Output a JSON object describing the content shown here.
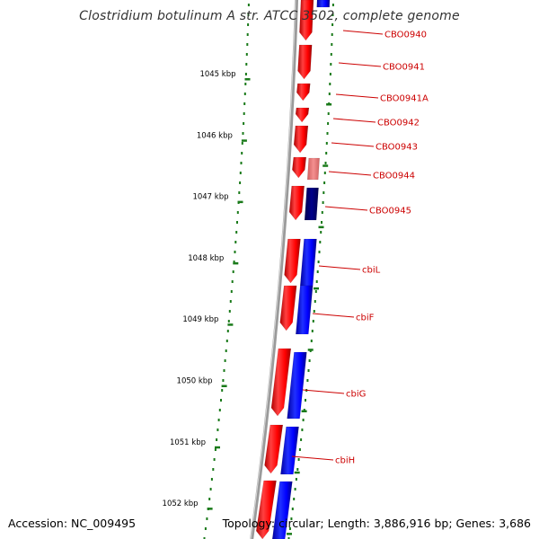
{
  "title": "Clostridium botulinum A str. ATCC 3502, complete genome",
  "accession": "Accession: NC_009495",
  "summary": "Topology: circular; Length: 3,886,916 bp; Genes: 3,686",
  "ticks": [
    {
      "label": "1045 kbp"
    },
    {
      "label": "1046 kbp"
    },
    {
      "label": "1047 kbp"
    },
    {
      "label": "1048 kbp"
    },
    {
      "label": "1049 kbp"
    },
    {
      "label": "1050 kbp"
    },
    {
      "label": "1051 kbp"
    },
    {
      "label": "1052 kbp"
    }
  ],
  "genes": [
    {
      "label": "CBO0940"
    },
    {
      "label": "CBO0941"
    },
    {
      "label": "CBO0941A"
    },
    {
      "label": "CBO0942"
    },
    {
      "label": "CBO0943"
    },
    {
      "label": "CBO0944"
    },
    {
      "label": "CBO0945"
    },
    {
      "label": "cbiL"
    },
    {
      "label": "cbiF"
    },
    {
      "label": "cbiG"
    },
    {
      "label": "cbiH"
    }
  ],
  "colors": {
    "forward": "#ff0000",
    "forward_light": "#f08080",
    "reverse": "#0000ff",
    "reverse_dark": "#000080",
    "label": "#cc0000",
    "backbone": "#808080",
    "ticks": "#1a7a1a"
  }
}
